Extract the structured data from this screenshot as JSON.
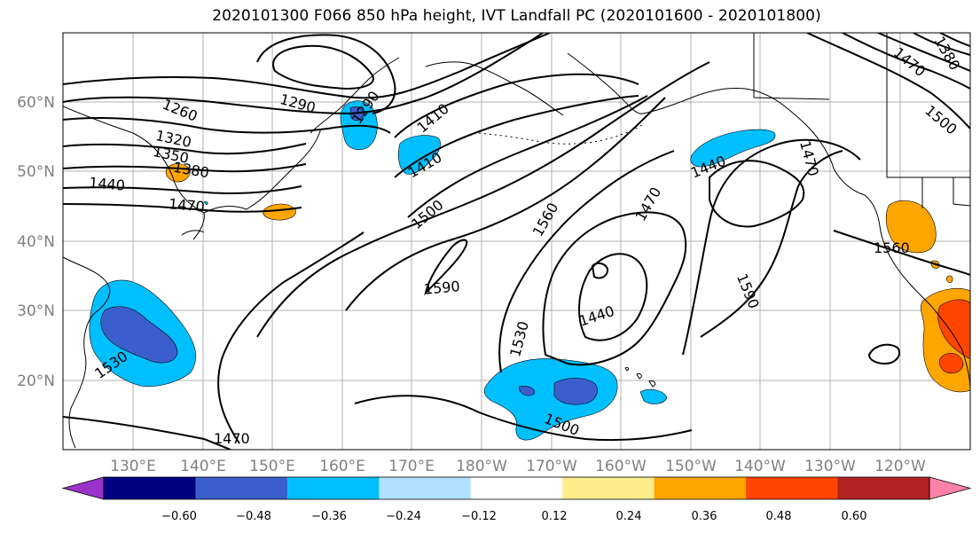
{
  "title": "2020101300 F066 850 hPa height, IVT Landfall PC (2020101600 - 2020101800)",
  "latitude_labels": [
    "60°N",
    "50°N",
    "40°N",
    "30°N",
    "20°N"
  ],
  "longitude_labels": [
    "130°E",
    "140°E",
    "150°E",
    "160°E",
    "170°E",
    "180°W",
    "170°W",
    "160°W",
    "150°W",
    "140°W",
    "130°W",
    "120°W"
  ],
  "contour_labels": [
    "1260",
    "1290",
    "1320",
    "1350",
    "1380",
    "1440",
    "1470",
    "1290",
    "1410",
    "1500",
    "1560",
    "1470",
    "1440",
    "1590",
    "1440",
    "1560",
    "1590",
    "1530",
    "1530",
    "1500",
    "1470"
  ],
  "colorbar": {
    "ticks": [
      "−0.60",
      "−0.48",
      "−0.36",
      "−0.24",
      "−0.12",
      "0.12",
      "0.24",
      "0.36",
      "0.48",
      "0.60"
    ],
    "colors": [
      "#9933cc",
      "#000080",
      "#3a5fcd",
      "#00bfff",
      "#b0e2ff",
      "#ffffff",
      "#ffec8b",
      "#ffa500",
      "#ff4500",
      "#b22222",
      "#ff82ab"
    ]
  },
  "shading_colors": {
    "blue_light": "#00bfff",
    "blue_mid": "#3a5fcd",
    "orange": "#ffa500",
    "red": "#ff4500"
  }
}
